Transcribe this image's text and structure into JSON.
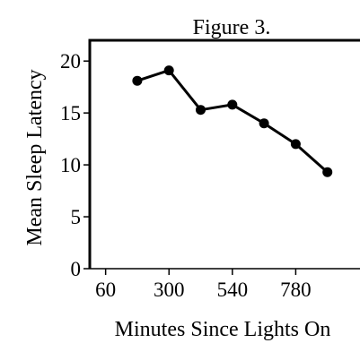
{
  "chart_data": {
    "type": "line",
    "title": "Figure 3.",
    "xlabel": "Minutes Since Lights On",
    "ylabel": "Mean Sleep Latency",
    "x_ticks": [
      60,
      300,
      540,
      780
    ],
    "y_ticks": [
      0,
      5,
      10,
      15,
      20
    ],
    "xlim": [
      0,
      1020
    ],
    "ylim": [
      0,
      22
    ],
    "grid": false,
    "series": [
      {
        "x": [
          180,
          300,
          420,
          540,
          660,
          780,
          900
        ],
        "y": [
          18.1,
          19.1,
          15.3,
          15.8,
          14.0,
          12.0,
          9.3
        ]
      }
    ]
  }
}
